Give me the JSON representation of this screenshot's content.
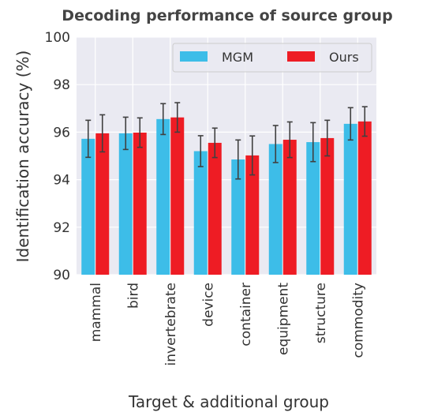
{
  "chart_data": {
    "type": "bar",
    "title": "Decoding performance of source group",
    "xlabel": "Target & additional group",
    "ylabel": "Identification accuracy (%)",
    "ylim": [
      90,
      100
    ],
    "yticks": [
      "90",
      "92",
      "94",
      "96",
      "98",
      "100"
    ],
    "grid": true,
    "legend_position": "top-right",
    "categories": [
      "mammal",
      "bird",
      "invertebrate",
      "device",
      "container",
      "equipment",
      "structure",
      "commodity"
    ],
    "series": [
      {
        "name": "MGM",
        "color": "#3dbde8",
        "values": [
          95.72,
          95.95,
          96.55,
          95.2,
          94.85,
          95.5,
          95.58,
          96.35
        ],
        "errors": [
          0.78,
          0.68,
          0.65,
          0.65,
          0.82,
          0.78,
          0.82,
          0.68
        ]
      },
      {
        "name": "Ours",
        "color": "#ee1c24",
        "values": [
          95.95,
          95.98,
          96.62,
          95.55,
          95.02,
          95.68,
          95.75,
          96.45
        ],
        "errors": [
          0.78,
          0.62,
          0.62,
          0.62,
          0.82,
          0.75,
          0.75,
          0.62
        ]
      }
    ]
  }
}
